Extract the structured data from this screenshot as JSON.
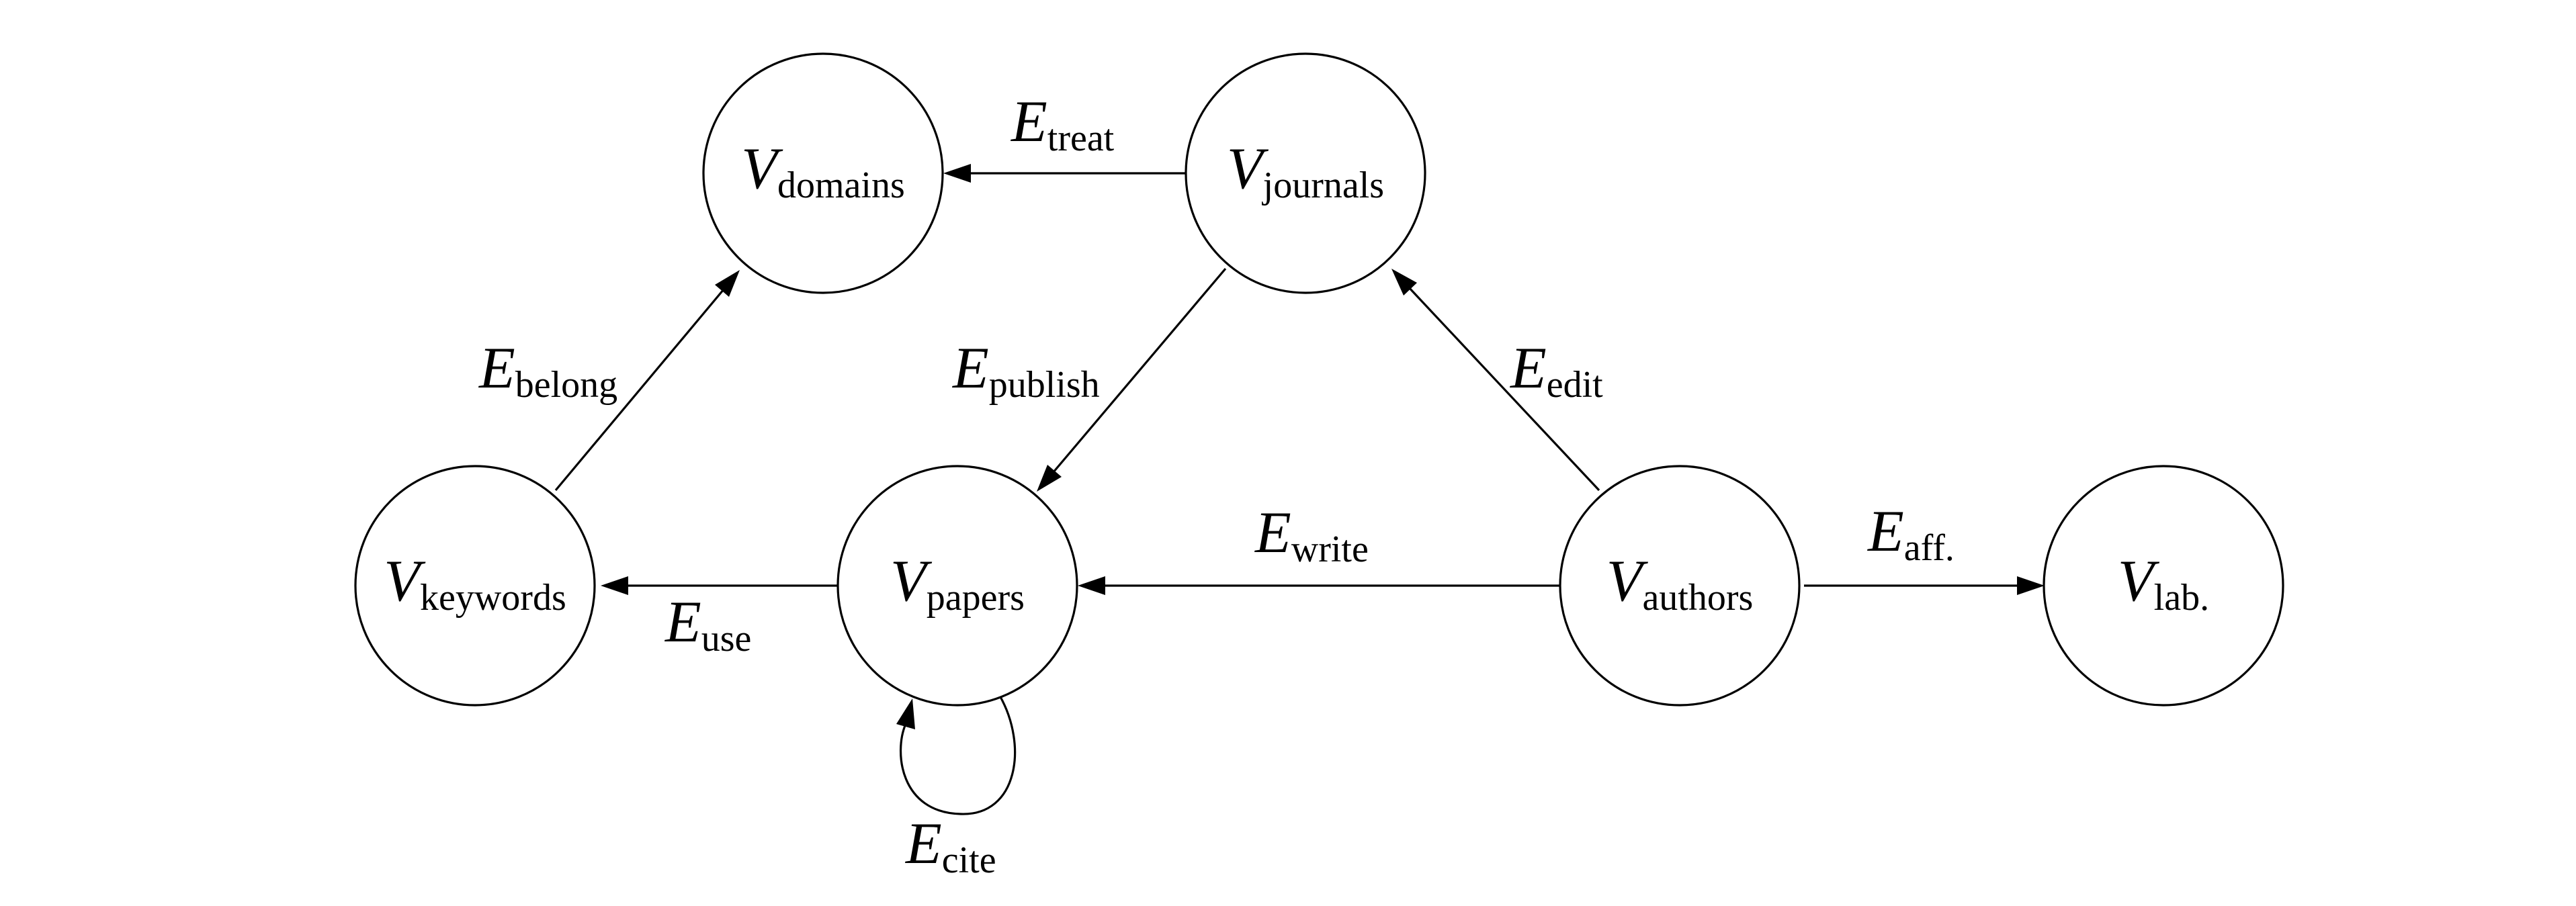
{
  "diagram": {
    "nodes": [
      {
        "id": "domains",
        "symbol": "V",
        "subscript": "domains"
      },
      {
        "id": "journals",
        "symbol": "V",
        "subscript": "journals"
      },
      {
        "id": "keywords",
        "symbol": "V",
        "subscript": "keywords"
      },
      {
        "id": "papers",
        "symbol": "V",
        "subscript": "papers"
      },
      {
        "id": "authors",
        "symbol": "V",
        "subscript": "authors"
      },
      {
        "id": "lab",
        "symbol": "V",
        "subscript": "lab."
      }
    ],
    "edges": [
      {
        "id": "treat",
        "symbol": "E",
        "subscript": "treat",
        "from": "journals",
        "to": "domains"
      },
      {
        "id": "belong",
        "symbol": "E",
        "subscript": "belong",
        "from": "keywords",
        "to": "domains"
      },
      {
        "id": "publish",
        "symbol": "E",
        "subscript": "publish",
        "from": "journals",
        "to": "papers"
      },
      {
        "id": "edit",
        "symbol": "E",
        "subscript": "edit",
        "from": "authors",
        "to": "journals"
      },
      {
        "id": "write",
        "symbol": "E",
        "subscript": "write",
        "from": "authors",
        "to": "papers"
      },
      {
        "id": "use",
        "symbol": "E",
        "subscript": "use",
        "from": "papers",
        "to": "keywords"
      },
      {
        "id": "aff",
        "symbol": "E",
        "subscript": "aff.",
        "from": "authors",
        "to": "lab"
      },
      {
        "id": "cite",
        "symbol": "E",
        "subscript": "cite",
        "from": "papers",
        "to": "papers"
      }
    ]
  }
}
